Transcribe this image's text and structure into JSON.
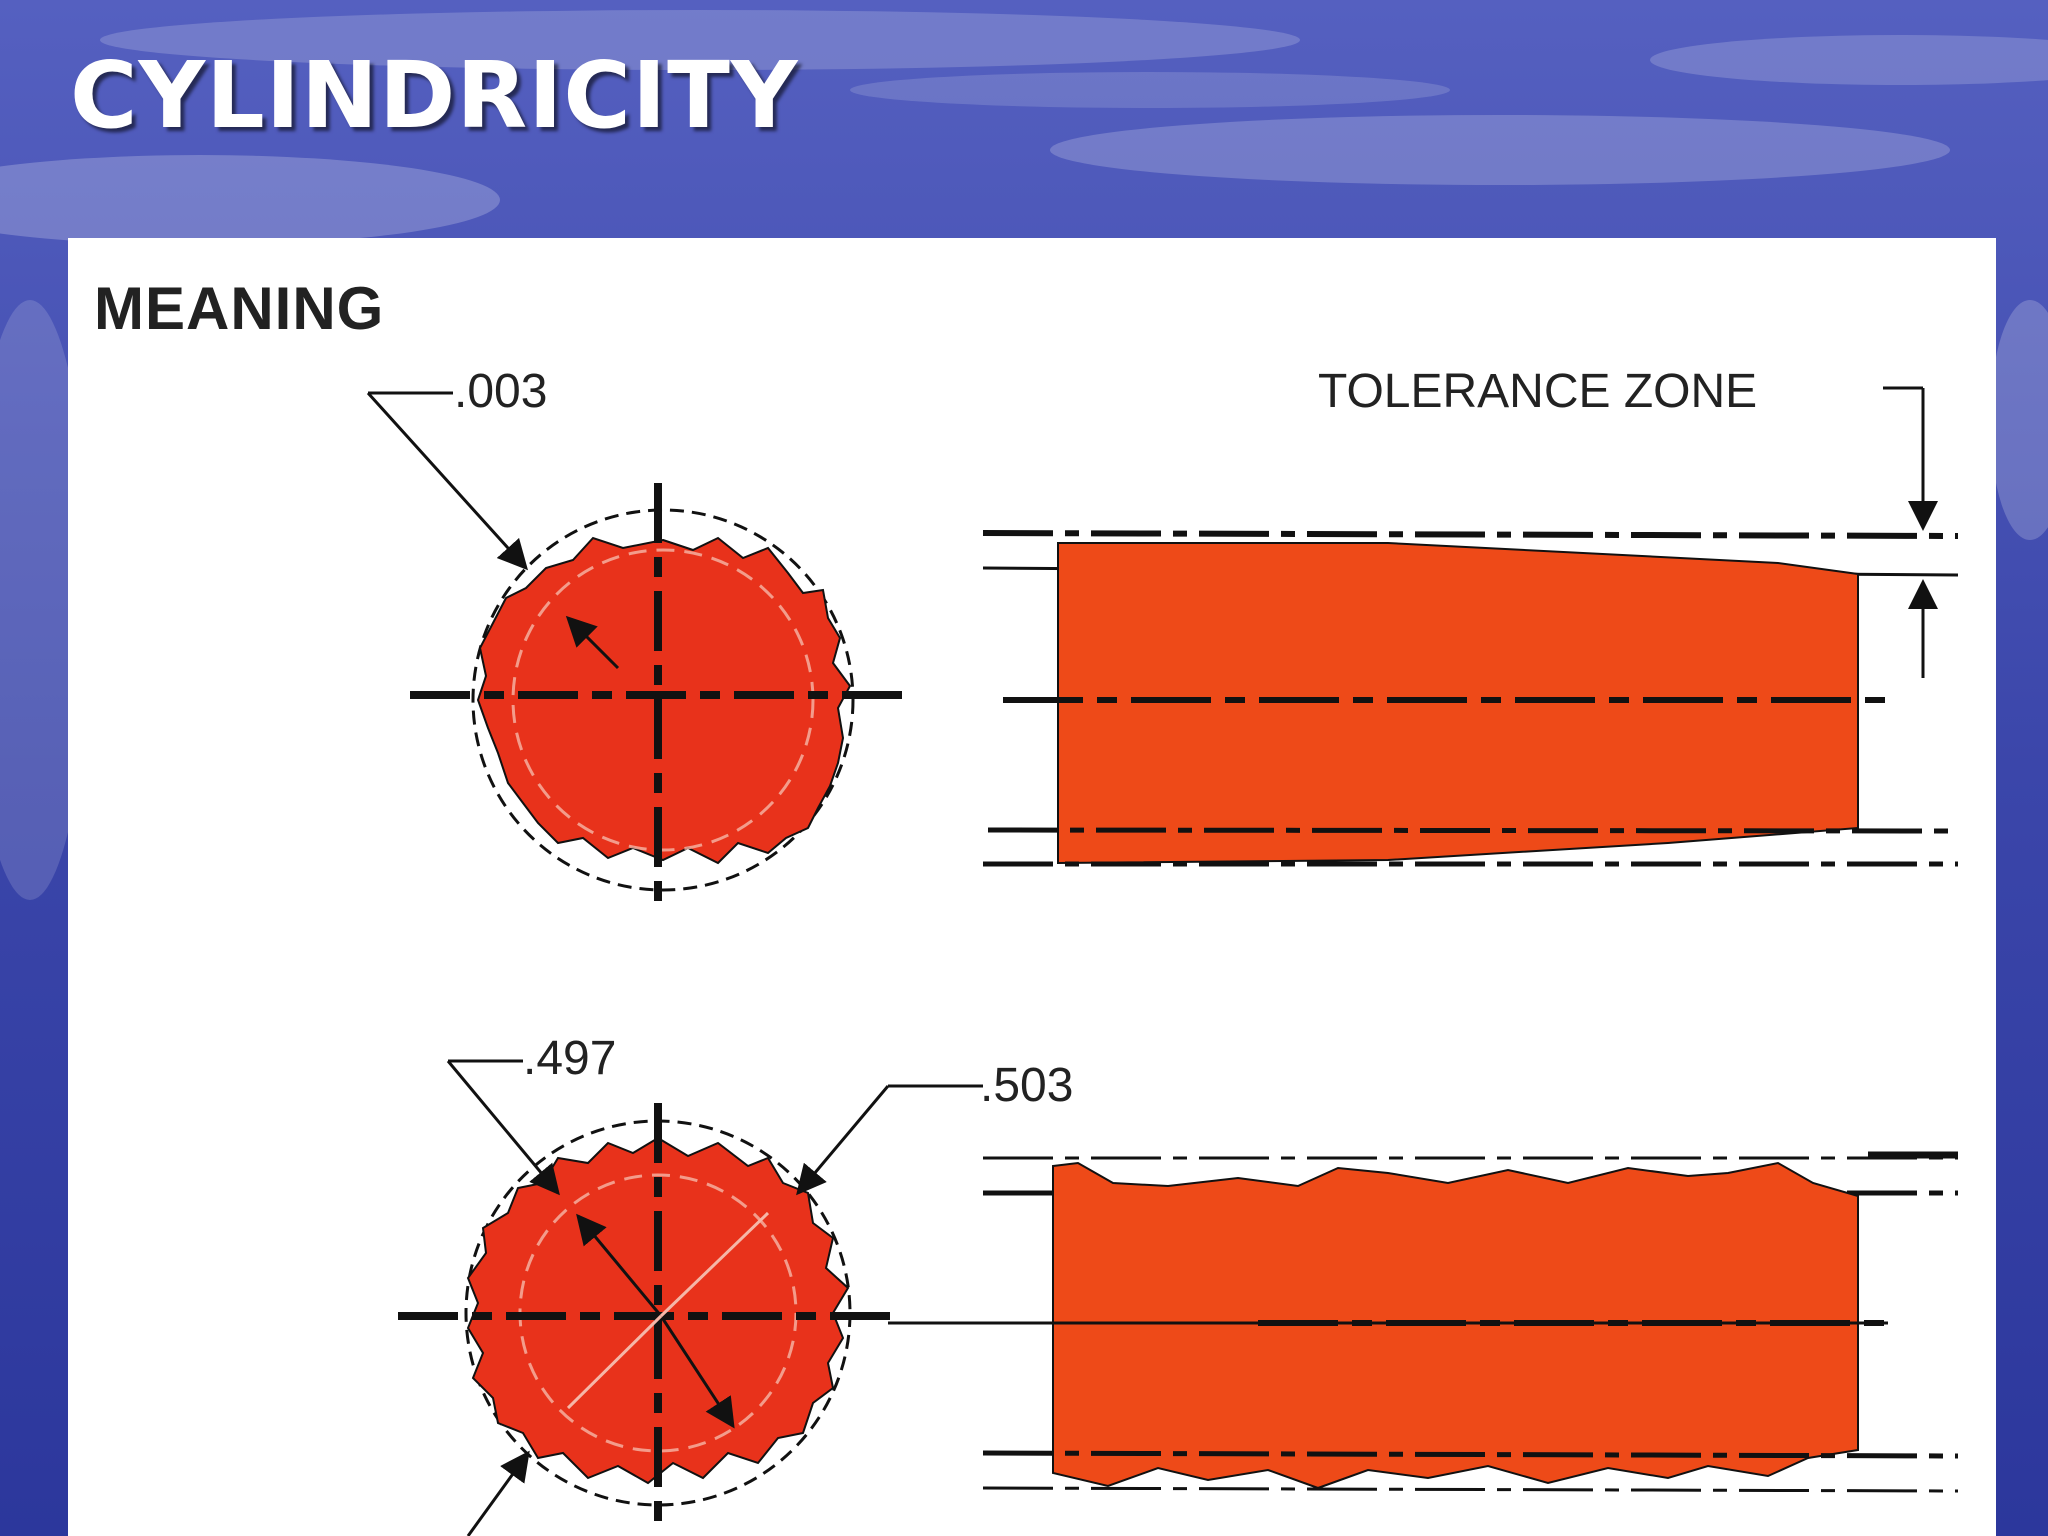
{
  "slide": {
    "title": "CYLINDRICITY"
  },
  "diagram": {
    "heading": "MEANING",
    "labels": {
      "tolerance_top": ".003",
      "tolerance_zone": "TOLERANCE ZONE",
      "inner_diameter": ".497",
      "outer_diameter": ".503"
    },
    "colors": {
      "part_section": "#e8321b",
      "part_side": "#ee4a18",
      "lines": "#111111",
      "panel": "#ffffff"
    }
  }
}
